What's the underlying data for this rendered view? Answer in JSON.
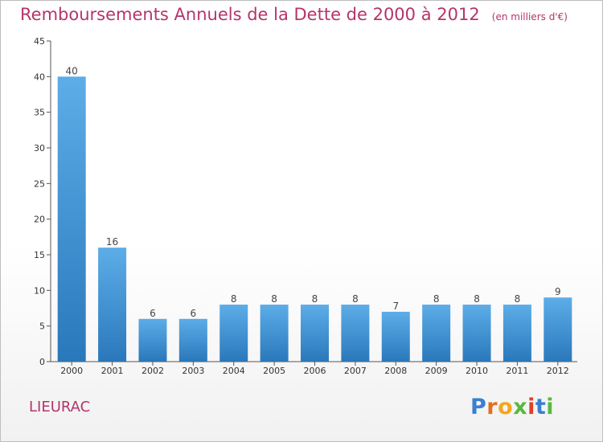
{
  "header": {
    "title": "Remboursements Annuels de la Dette de 2000 à 2012",
    "unit": "(en milliers d'€)"
  },
  "location": "LIEURAC",
  "logo": {
    "text": "Proxiti",
    "letter_colors": [
      "#3a7fd0",
      "#e0701e",
      "#f2a81d",
      "#58b83f",
      "#e0402a",
      "#3a7fd0",
      "#58b83f"
    ]
  },
  "colors": {
    "bar_top": "#5dade8",
    "bar_bottom": "#2a78bb",
    "title": "#b5346b",
    "axis": "#555555"
  },
  "chart_data": {
    "type": "bar",
    "title": "Remboursements Annuels de la Dette de 2000 à 2012",
    "categories": [
      "2000",
      "2001",
      "2002",
      "2003",
      "2004",
      "2005",
      "2006",
      "2007",
      "2008",
      "2009",
      "2010",
      "2011",
      "2012"
    ],
    "values": [
      40,
      16,
      6,
      6,
      8,
      8,
      8,
      8,
      7,
      8,
      8,
      8,
      9
    ],
    "data_labels": [
      "40",
      "16",
      "6",
      "6",
      "8",
      "8",
      "8",
      "8",
      "7",
      "8",
      "8",
      "8",
      "9"
    ],
    "ylim": [
      0,
      45
    ],
    "yticks": [
      0,
      5,
      10,
      15,
      20,
      25,
      30,
      35,
      40,
      45
    ],
    "grid": false,
    "legend": "none"
  }
}
